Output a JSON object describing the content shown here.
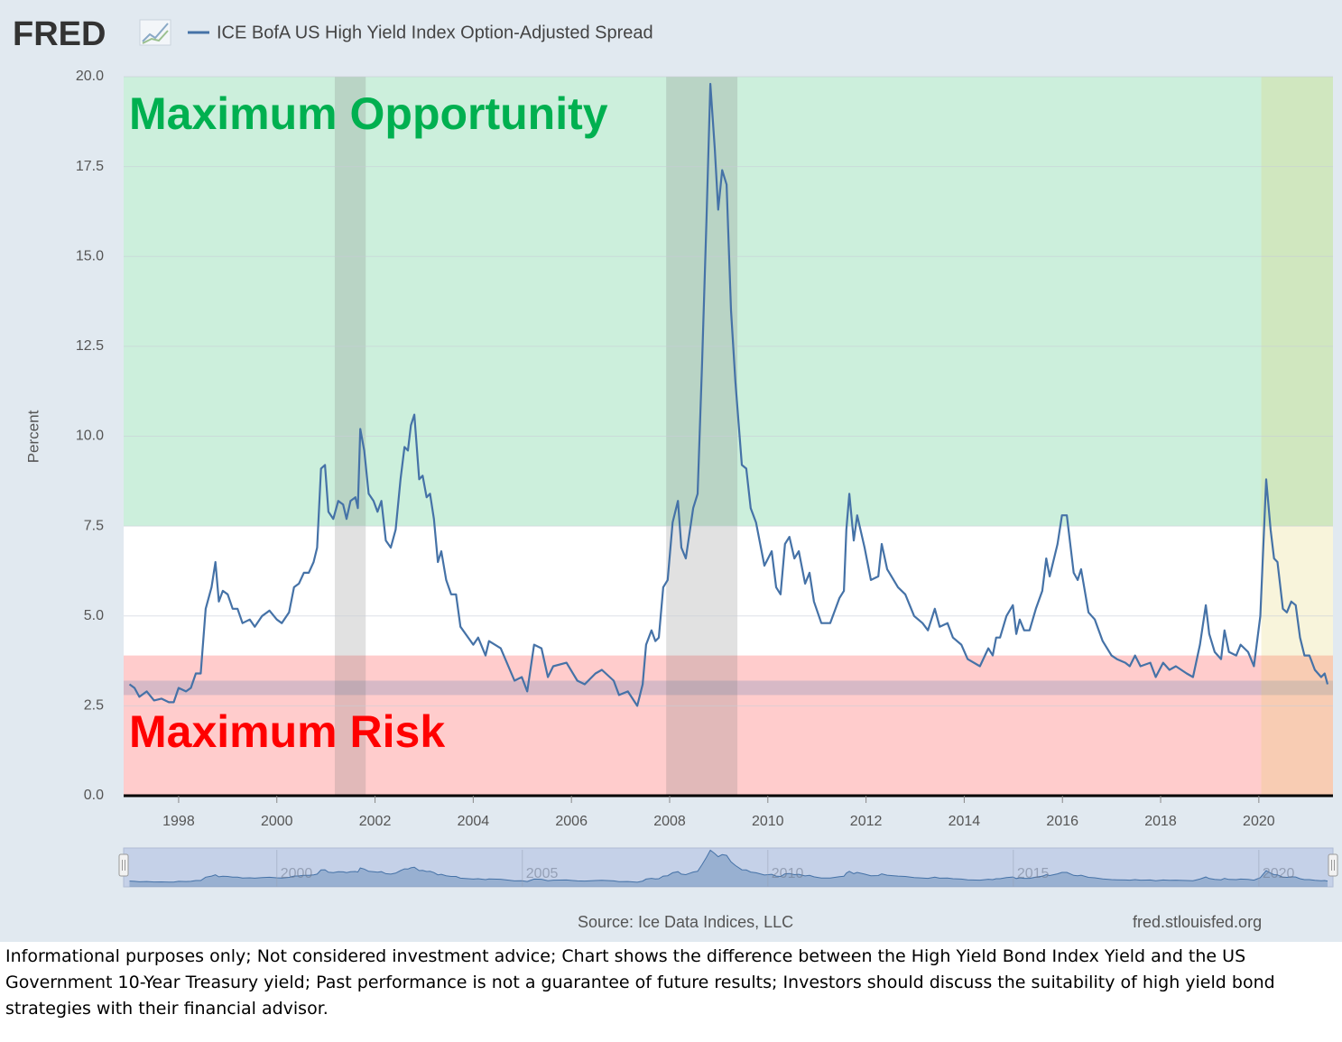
{
  "chart_data": {
    "type": "line",
    "brand": "FRED",
    "series_name": "ICE BofA US High Yield Index Option-Adjusted Spread",
    "color": "#4572a7",
    "y_label": "Percent",
    "source": "Source: Ice Data Indices, LLC",
    "site": "fred.stlouisfed.org",
    "footnote": "Informational purposes only; Not considered investment advice; Chart shows the difference between the High Yield Bond Index Yield and the US Government 10-Year Treasury yield; Past performance is not a guarantee of future results; Investors should discuss the suitability of high yield bond strategies with their financial advisor.",
    "zones": [
      {
        "label": "Maximum Opportunity",
        "range": [
          7.5,
          20
        ],
        "color": "#ccefdc",
        "text_color": "#00b050"
      },
      {
        "label": "Maximum Risk",
        "range": [
          0,
          3.9
        ],
        "color": "#ffcccc",
        "text_color": "#ff0000"
      }
    ],
    "reference_band": {
      "range": [
        2.8,
        3.2
      ],
      "color": "rgba(140,150,185,0.35)"
    },
    "recessions": [
      {
        "start": 2001.18,
        "end": 2001.81,
        "color": "rgba(120,120,120,0.22)"
      },
      {
        "start": 2007.93,
        "end": 2009.38,
        "color": "rgba(120,120,120,0.22)"
      },
      {
        "start": 2020.05,
        "end": 2021.51,
        "color": "rgba(225,205,90,0.22)"
      }
    ],
    "x": [
      1997.0,
      1997.1,
      1997.2,
      1997.35,
      1997.5,
      1997.65,
      1997.8,
      1997.9,
      1998.0,
      1998.15,
      1998.25,
      1998.35,
      1998.45,
      1998.55,
      1998.67,
      1998.75,
      1998.82,
      1998.9,
      1999.0,
      1999.1,
      1999.2,
      1999.3,
      1999.45,
      1999.55,
      1999.7,
      1999.85,
      2000.0,
      2000.1,
      2000.25,
      2000.35,
      2000.45,
      2000.55,
      2000.65,
      2000.75,
      2000.82,
      2000.9,
      2000.98,
      2001.05,
      2001.15,
      2001.25,
      2001.35,
      2001.42,
      2001.5,
      2001.6,
      2001.65,
      2001.7,
      2001.78,
      2001.87,
      2001.97,
      2002.05,
      2002.13,
      2002.22,
      2002.32,
      2002.42,
      2002.52,
      2002.6,
      2002.67,
      2002.73,
      2002.8,
      2002.9,
      2002.97,
      2003.05,
      2003.12,
      2003.2,
      2003.28,
      2003.35,
      2003.45,
      2003.55,
      2003.65,
      2003.74,
      2004.0,
      2004.1,
      2004.25,
      2004.32,
      2004.56,
      2004.84,
      2004.99,
      2005.1,
      2005.24,
      2005.39,
      2005.52,
      2005.63,
      2005.9,
      2006.12,
      2006.27,
      2006.49,
      2006.62,
      2006.86,
      2006.97,
      2007.15,
      2007.34,
      2007.45,
      2007.52,
      2007.63,
      2007.71,
      2007.78,
      2007.87,
      2007.96,
      2008.06,
      2008.17,
      2008.24,
      2008.33,
      2008.48,
      2008.57,
      2008.66,
      2008.75,
      2008.83,
      2008.92,
      2008.99,
      2009.07,
      2009.16,
      2009.25,
      2009.34,
      2009.47,
      2009.56,
      2009.65,
      2009.76,
      2009.93,
      2010.08,
      2010.17,
      2010.26,
      2010.35,
      2010.44,
      2010.54,
      2010.63,
      2010.76,
      2010.85,
      2010.94,
      2011.09,
      2011.27,
      2011.46,
      2011.55,
      2011.6,
      2011.66,
      2011.75,
      2011.82,
      2011.97,
      2012.1,
      2012.25,
      2012.32,
      2012.43,
      2012.65,
      2012.8,
      2012.98,
      2013.15,
      2013.26,
      2013.4,
      2013.5,
      2013.66,
      2013.77,
      2013.94,
      2014.07,
      2014.32,
      2014.49,
      2014.58,
      2014.65,
      2014.73,
      2014.86,
      2014.99,
      2015.06,
      2015.13,
      2015.22,
      2015.33,
      2015.46,
      2015.59,
      2015.67,
      2015.74,
      2015.9,
      2015.99,
      2016.09,
      2016.23,
      2016.31,
      2016.38,
      2016.53,
      2016.66,
      2016.82,
      2017.0,
      2017.11,
      2017.28,
      2017.37,
      2017.48,
      2017.59,
      2017.79,
      2017.9,
      2018.05,
      2018.18,
      2018.31,
      2018.53,
      2018.66,
      2018.8,
      2018.92,
      2018.99,
      2019.1,
      2019.23,
      2019.3,
      2019.39,
      2019.54,
      2019.63,
      2019.78,
      2019.9,
      2020.03,
      2020.15,
      2020.24,
      2020.31,
      2020.38,
      2020.49,
      2020.57,
      2020.66,
      2020.75,
      2020.84,
      2020.93,
      2021.03,
      2021.14,
      2021.27,
      2021.34,
      2021.4
    ],
    "values": [
      3.1,
      3.0,
      2.75,
      2.9,
      2.65,
      2.7,
      2.6,
      2.6,
      3.0,
      2.9,
      3.0,
      3.4,
      3.4,
      5.2,
      5.8,
      6.5,
      5.4,
      5.7,
      5.6,
      5.2,
      5.2,
      4.8,
      4.9,
      4.7,
      5.0,
      5.15,
      4.9,
      4.8,
      5.1,
      5.8,
      5.9,
      6.2,
      6.2,
      6.5,
      6.9,
      9.1,
      9.2,
      7.9,
      7.7,
      8.2,
      8.1,
      7.7,
      8.2,
      8.3,
      8.0,
      10.2,
      9.6,
      8.4,
      8.2,
      7.9,
      8.2,
      7.1,
      6.9,
      7.4,
      8.8,
      9.7,
      9.6,
      10.3,
      10.6,
      8.8,
      8.9,
      8.3,
      8.4,
      7.7,
      6.5,
      6.8,
      6.0,
      5.6,
      5.6,
      4.7,
      4.2,
      4.4,
      3.9,
      4.3,
      4.1,
      3.2,
      3.3,
      2.9,
      4.2,
      4.1,
      3.3,
      3.6,
      3.7,
      3.2,
      3.1,
      3.4,
      3.5,
      3.2,
      2.8,
      2.9,
      2.5,
      3.1,
      4.2,
      4.6,
      4.3,
      4.4,
      5.8,
      6.0,
      7.6,
      8.2,
      6.9,
      6.6,
      8.0,
      8.4,
      12.0,
      16.0,
      19.8,
      18.0,
      16.3,
      17.4,
      17.0,
      13.5,
      11.5,
      9.2,
      9.1,
      8.0,
      7.6,
      6.4,
      6.8,
      5.8,
      5.6,
      7.0,
      7.2,
      6.6,
      6.8,
      5.9,
      6.2,
      5.4,
      4.8,
      4.8,
      5.5,
      5.7,
      7.4,
      8.4,
      7.1,
      7.8,
      6.9,
      6.0,
      6.1,
      7.0,
      6.3,
      5.8,
      5.6,
      5.0,
      4.8,
      4.6,
      5.2,
      4.7,
      4.8,
      4.4,
      4.2,
      3.8,
      3.6,
      4.1,
      3.9,
      4.4,
      4.4,
      5.0,
      5.3,
      4.5,
      4.9,
      4.6,
      4.6,
      5.2,
      5.7,
      6.6,
      6.1,
      7.0,
      7.8,
      7.8,
      6.2,
      6.0,
      6.3,
      5.1,
      4.9,
      4.3,
      3.9,
      3.8,
      3.7,
      3.6,
      3.9,
      3.6,
      3.7,
      3.3,
      3.7,
      3.5,
      3.6,
      3.4,
      3.3,
      4.2,
      5.3,
      4.5,
      4.0,
      3.8,
      4.6,
      4.0,
      3.9,
      4.2,
      4.0,
      3.6,
      5.0,
      8.8,
      7.4,
      6.6,
      6.5,
      5.2,
      5.1,
      5.4,
      5.3,
      4.4,
      3.9,
      3.9,
      3.5,
      3.3,
      3.4,
      3.1
    ],
    "xlim": [
      1996.88,
      2021.51
    ],
    "xticks": [
      1998,
      2000,
      2002,
      2004,
      2006,
      2008,
      2010,
      2012,
      2014,
      2016,
      2018,
      2020
    ],
    "ylim": [
      0,
      20
    ],
    "yticks": [
      {
        "value": 0,
        "label": "0.0"
      },
      2.5,
      {
        "value": 5,
        "label": "5.0"
      },
      7.5,
      {
        "value": 10,
        "label": "10.0"
      },
      12.5,
      {
        "value": 15,
        "label": "15.0"
      },
      17.5,
      {
        "value": 20,
        "label": "20.0"
      }
    ],
    "navigator_ticks": [
      2000,
      2005,
      2010,
      2015,
      2020
    ]
  }
}
